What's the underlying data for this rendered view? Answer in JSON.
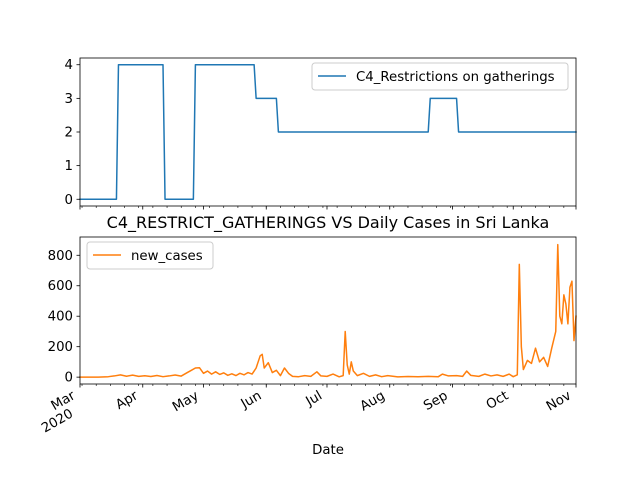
{
  "chart_data": [
    {
      "type": "line",
      "title": "",
      "xlabel": "",
      "ylabel": "",
      "ylim": [
        -0.2,
        4.2
      ],
      "yticks": [
        0,
        1,
        2,
        3,
        4
      ],
      "grid": false,
      "legend_position": "top-right",
      "series": [
        {
          "name": "C4_Restrictions on gatherings",
          "color": "#1f77b4",
          "points": [
            [
              "2020-03-01",
              0
            ],
            [
              "2020-03-19",
              0
            ],
            [
              "2020-03-20",
              4
            ],
            [
              "2020-04-11",
              4
            ],
            [
              "2020-04-12",
              0
            ],
            [
              "2020-04-26",
              0
            ],
            [
              "2020-04-27",
              4
            ],
            [
              "2020-05-26",
              4
            ],
            [
              "2020-05-27",
              3
            ],
            [
              "2020-06-06",
              3
            ],
            [
              "2020-06-07",
              2
            ],
            [
              "2020-08-20",
              2
            ],
            [
              "2020-08-21",
              3
            ],
            [
              "2020-09-03",
              3
            ],
            [
              "2020-09-04",
              2
            ],
            [
              "2020-11-01",
              2
            ]
          ]
        }
      ]
    },
    {
      "type": "line",
      "title": "C4_RESTRICT_GATHERINGS VS Daily Cases in Sri Lanka",
      "xlabel": "Date",
      "ylabel": "",
      "ylim": [
        -45,
        920
      ],
      "yticks": [
        0,
        200,
        400,
        600,
        800
      ],
      "grid": false,
      "legend_position": "top-left",
      "series": [
        {
          "name": "new_cases",
          "color": "#ff7f0e",
          "points": [
            [
              "2020-03-01",
              0
            ],
            [
              "2020-03-10",
              0
            ],
            [
              "2020-03-15",
              3
            ],
            [
              "2020-03-18",
              8
            ],
            [
              "2020-03-21",
              15
            ],
            [
              "2020-03-24",
              6
            ],
            [
              "2020-03-27",
              13
            ],
            [
              "2020-03-30",
              5
            ],
            [
              "2020-04-02",
              9
            ],
            [
              "2020-04-05",
              4
            ],
            [
              "2020-04-08",
              11
            ],
            [
              "2020-04-11",
              3
            ],
            [
              "2020-04-14",
              8
            ],
            [
              "2020-04-17",
              14
            ],
            [
              "2020-04-20",
              7
            ],
            [
              "2020-04-23",
              30
            ],
            [
              "2020-04-25",
              45
            ],
            [
              "2020-04-27",
              60
            ],
            [
              "2020-04-29",
              62
            ],
            [
              "2020-05-01",
              25
            ],
            [
              "2020-05-03",
              40
            ],
            [
              "2020-05-05",
              20
            ],
            [
              "2020-05-07",
              35
            ],
            [
              "2020-05-09",
              18
            ],
            [
              "2020-05-11",
              28
            ],
            [
              "2020-05-13",
              12
            ],
            [
              "2020-05-15",
              22
            ],
            [
              "2020-05-17",
              10
            ],
            [
              "2020-05-19",
              25
            ],
            [
              "2020-05-21",
              15
            ],
            [
              "2020-05-23",
              30
            ],
            [
              "2020-05-25",
              20
            ],
            [
              "2020-05-27",
              60
            ],
            [
              "2020-05-29",
              140
            ],
            [
              "2020-05-30",
              150
            ],
            [
              "2020-05-31",
              60
            ],
            [
              "2020-06-02",
              95
            ],
            [
              "2020-06-04",
              30
            ],
            [
              "2020-06-06",
              45
            ],
            [
              "2020-06-08",
              10
            ],
            [
              "2020-06-10",
              60
            ],
            [
              "2020-06-12",
              25
            ],
            [
              "2020-06-14",
              5
            ],
            [
              "2020-06-17",
              3
            ],
            [
              "2020-06-20",
              10
            ],
            [
              "2020-06-23",
              5
            ],
            [
              "2020-06-26",
              35
            ],
            [
              "2020-06-28",
              8
            ],
            [
              "2020-07-01",
              5
            ],
            [
              "2020-07-04",
              20
            ],
            [
              "2020-07-07",
              2
            ],
            [
              "2020-07-09",
              10
            ],
            [
              "2020-07-10",
              300
            ],
            [
              "2020-07-11",
              80
            ],
            [
              "2020-07-12",
              20
            ],
            [
              "2020-07-13",
              100
            ],
            [
              "2020-07-14",
              40
            ],
            [
              "2020-07-16",
              10
            ],
            [
              "2020-07-19",
              25
            ],
            [
              "2020-07-22",
              5
            ],
            [
              "2020-07-25",
              15
            ],
            [
              "2020-07-28",
              3
            ],
            [
              "2020-07-31",
              10
            ],
            [
              "2020-08-05",
              2
            ],
            [
              "2020-08-10",
              4
            ],
            [
              "2020-08-15",
              3
            ],
            [
              "2020-08-20",
              5
            ],
            [
              "2020-08-25",
              3
            ],
            [
              "2020-08-27",
              20
            ],
            [
              "2020-08-30",
              8
            ],
            [
              "2020-09-03",
              10
            ],
            [
              "2020-09-06",
              5
            ],
            [
              "2020-09-08",
              40
            ],
            [
              "2020-09-10",
              12
            ],
            [
              "2020-09-14",
              5
            ],
            [
              "2020-09-17",
              20
            ],
            [
              "2020-09-20",
              8
            ],
            [
              "2020-09-23",
              15
            ],
            [
              "2020-09-26",
              5
            ],
            [
              "2020-09-29",
              20
            ],
            [
              "2020-10-01",
              3
            ],
            [
              "2020-10-03",
              15
            ],
            [
              "2020-10-04",
              740
            ],
            [
              "2020-10-05",
              200
            ],
            [
              "2020-10-06",
              50
            ],
            [
              "2020-10-08",
              110
            ],
            [
              "2020-10-10",
              90
            ],
            [
              "2020-10-12",
              190
            ],
            [
              "2020-10-14",
              100
            ],
            [
              "2020-10-16",
              130
            ],
            [
              "2020-10-18",
              70
            ],
            [
              "2020-10-20",
              190
            ],
            [
              "2020-10-22",
              300
            ],
            [
              "2020-10-23",
              870
            ],
            [
              "2020-10-24",
              400
            ],
            [
              "2020-10-25",
              350
            ],
            [
              "2020-10-26",
              540
            ],
            [
              "2020-10-27",
              480
            ],
            [
              "2020-10-28",
              350
            ],
            [
              "2020-10-29",
              590
            ],
            [
              "2020-10-30",
              630
            ],
            [
              "2020-10-31",
              240
            ],
            [
              "2020-11-01",
              400
            ]
          ]
        }
      ]
    }
  ],
  "x_axis": {
    "start": "2020-03-01",
    "end": "2020-11-01",
    "ticks": [
      {
        "date": "2020-03-01",
        "label": "Mar",
        "sublabel": "2020"
      },
      {
        "date": "2020-04-01",
        "label": "Apr",
        "sublabel": ""
      },
      {
        "date": "2020-05-01",
        "label": "May",
        "sublabel": ""
      },
      {
        "date": "2020-06-01",
        "label": "Jun",
        "sublabel": ""
      },
      {
        "date": "2020-07-01",
        "label": "Jul",
        "sublabel": ""
      },
      {
        "date": "2020-08-01",
        "label": "Aug",
        "sublabel": ""
      },
      {
        "date": "2020-09-01",
        "label": "Sep",
        "sublabel": ""
      },
      {
        "date": "2020-10-01",
        "label": "Oct",
        "sublabel": ""
      },
      {
        "date": "2020-11-01",
        "label": "Nov",
        "sublabel": ""
      }
    ]
  }
}
